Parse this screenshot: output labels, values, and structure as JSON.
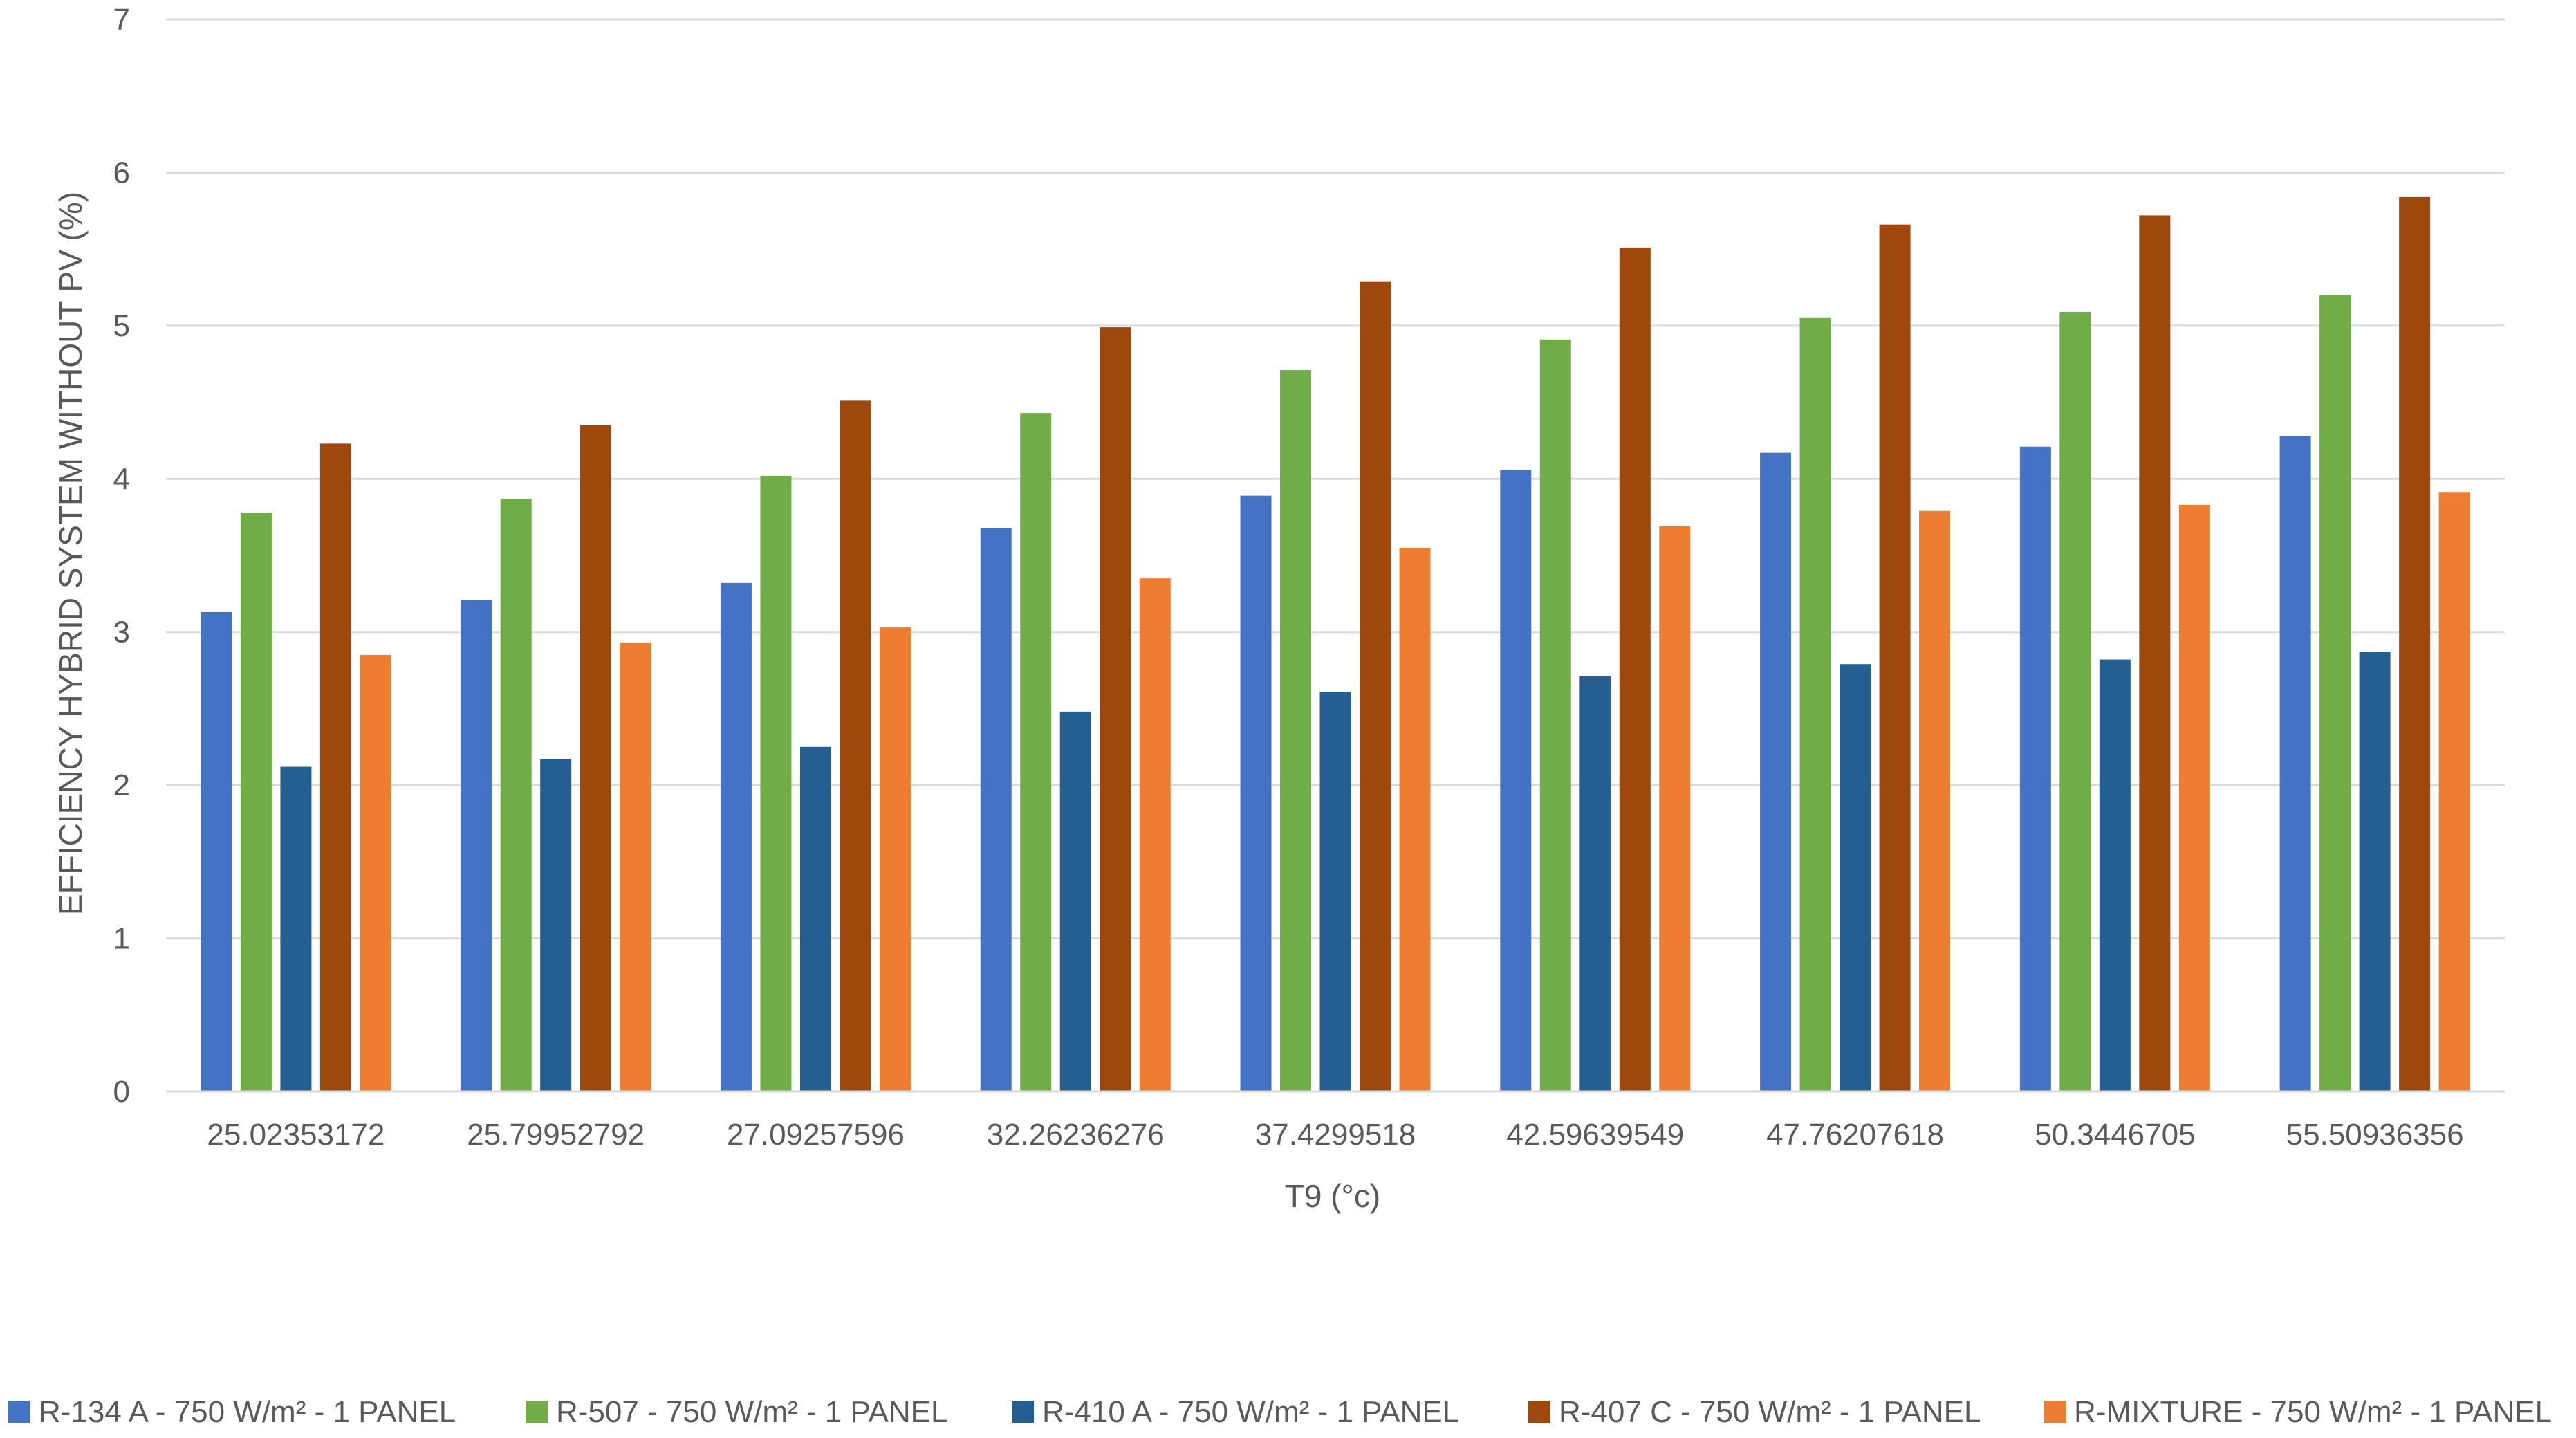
{
  "chart_data": {
    "type": "bar",
    "title": "",
    "xlabel": "T9 (°c)",
    "ylabel": "EFFICIENCY HYBRID SYSTEM WITHOUT PV (%)",
    "ylim": [
      0,
      7
    ],
    "yticks": [
      "0",
      "1",
      "2",
      "3",
      "4",
      "5",
      "6",
      "7"
    ],
    "grid": true,
    "legend_position": "bottom",
    "categories": [
      "25.02353172",
      "25.79952792",
      "27.09257596",
      "32.26236276",
      "37.4299518",
      "42.59639549",
      "47.76207618",
      "50.3446705",
      "55.50936356"
    ],
    "series": [
      {
        "name": "R-134 A - 750 W/m² - 1 PANEL",
        "color": "#4472C4",
        "values": [
          3.13,
          3.21,
          3.32,
          3.68,
          3.89,
          4.06,
          4.17,
          4.21,
          4.28
        ]
      },
      {
        "name": "R-507 - 750 W/m² - 1 PANEL",
        "color": "#70AD47",
        "values": [
          3.78,
          3.87,
          4.02,
          4.43,
          4.71,
          4.91,
          5.05,
          5.09,
          5.2
        ]
      },
      {
        "name": "R-410 A - 750 W/m² - 1 PANEL",
        "color": "#255E91",
        "values": [
          2.12,
          2.17,
          2.25,
          2.48,
          2.61,
          2.71,
          2.79,
          2.82,
          2.87
        ]
      },
      {
        "name": "R-407 C - 750 W/m² - 1 PANEL",
        "color": "#9E480E",
        "values": [
          4.23,
          4.35,
          4.51,
          4.99,
          5.29,
          5.51,
          5.66,
          5.72,
          5.84
        ]
      },
      {
        "name": "R-MIXTURE - 750 W/m² - 1 PANEL",
        "color": "#ED7D31",
        "values": [
          2.85,
          2.93,
          3.03,
          3.35,
          3.55,
          3.69,
          3.79,
          3.83,
          3.91
        ]
      }
    ]
  }
}
